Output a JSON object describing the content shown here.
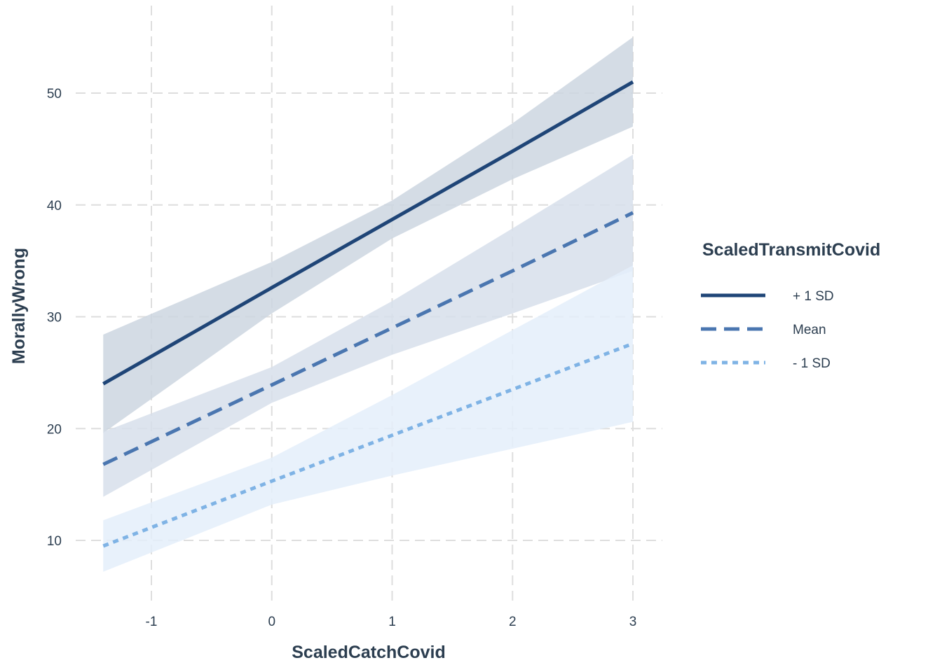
{
  "chart_data": {
    "type": "line",
    "xlabel": "ScaledCatchCovid",
    "ylabel": "MorallyWrong",
    "xlim": [
      -1.4,
      3.0
    ],
    "ylim": [
      5,
      56
    ],
    "xticks": [
      -1,
      0,
      1,
      2,
      3
    ],
    "yticks": [
      10,
      20,
      30,
      40,
      50
    ],
    "grid": true,
    "legend": {
      "title": "ScaledTransmitCovid",
      "position": "right"
    },
    "series": [
      {
        "name": "+ 1 SD",
        "color": "#1f4577",
        "dash": "solid",
        "band_color": "#cdd6e0",
        "x": [
          -1.4,
          0,
          1,
          2,
          3
        ],
        "y": [
          24.0,
          32.6,
          38.7,
          44.8,
          51.0
        ],
        "lower": [
          19.6,
          30.3,
          37.0,
          42.3,
          47.0
        ],
        "upper": [
          28.4,
          34.9,
          40.4,
          47.3,
          55.0
        ]
      },
      {
        "name": "Mean",
        "color": "#4a76b0",
        "dash": "dashed",
        "band_color": "#d7dfeb",
        "x": [
          -1.4,
          0,
          1,
          2,
          3
        ],
        "y": [
          16.8,
          23.9,
          29.0,
          34.1,
          39.3
        ],
        "lower": [
          13.9,
          22.3,
          26.6,
          30.3,
          34.1
        ],
        "upper": [
          19.7,
          25.5,
          31.4,
          37.9,
          44.5
        ]
      },
      {
        "name": "- 1 SD",
        "color": "#7fb3e5",
        "dash": "dotted",
        "band_color": "#e4eefa",
        "x": [
          -1.4,
          0,
          1,
          2,
          3
        ],
        "y": [
          9.5,
          15.3,
          19.4,
          23.5,
          27.6
        ],
        "lower": [
          7.2,
          13.2,
          15.8,
          18.2,
          20.6
        ],
        "upper": [
          11.8,
          17.4,
          23.0,
          28.8,
          34.6
        ]
      }
    ]
  }
}
